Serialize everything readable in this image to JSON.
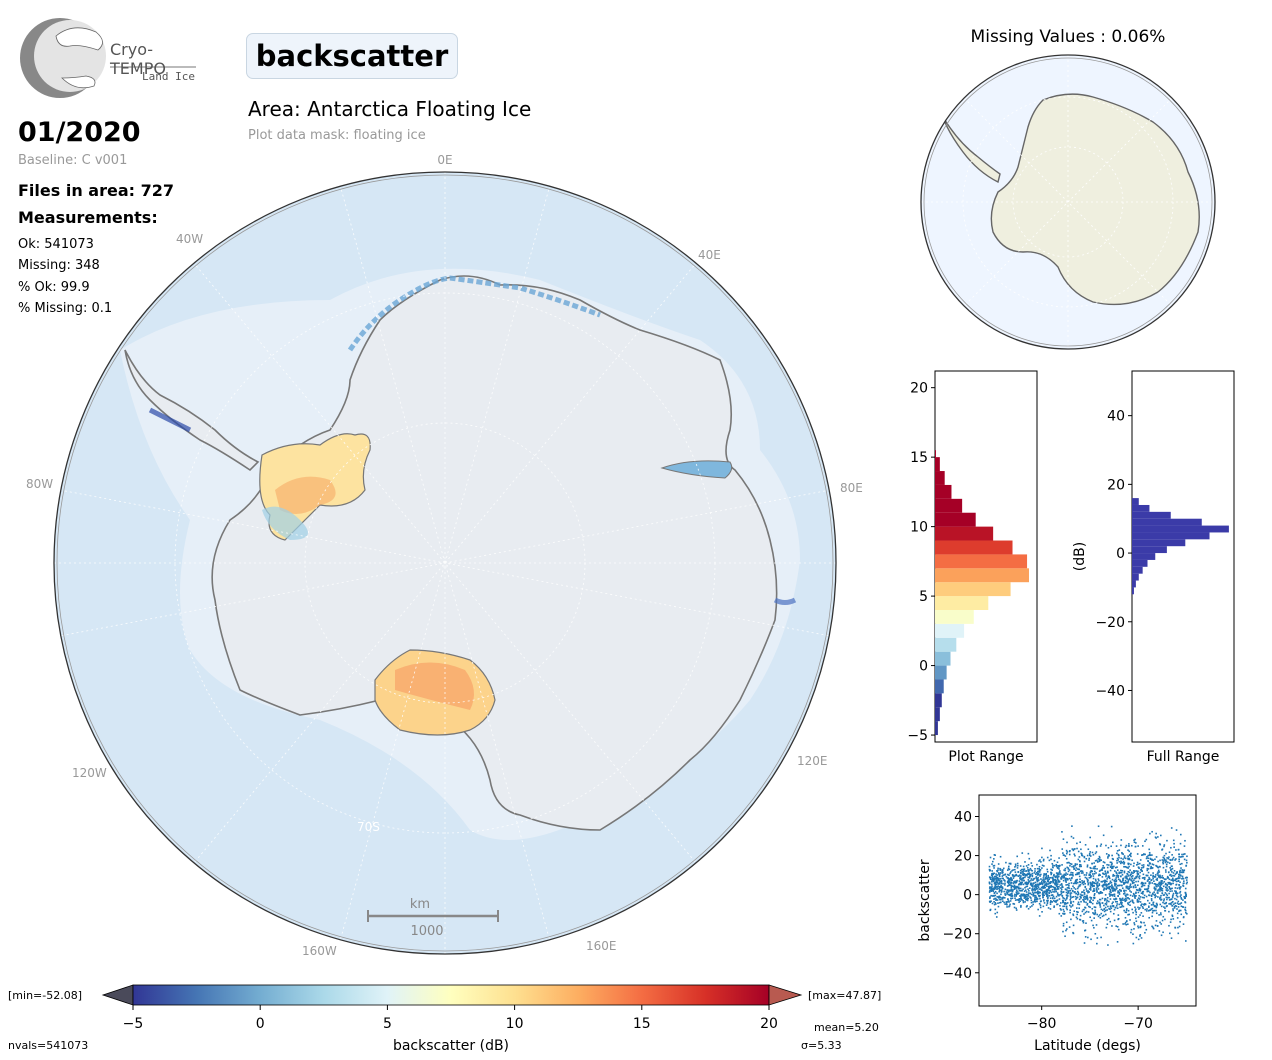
{
  "logo": {
    "brand": "Cryo-TEMPO",
    "product": "Land Ice"
  },
  "variable_name": "backscatter",
  "period": "01/2020",
  "baseline": "Baseline: C v001",
  "area_title": "Area: Antarctica Floating Ice",
  "mask_note": "Plot data mask: floating ice",
  "stats": {
    "files": "Files in area: 727",
    "measurements_heading": "Measurements:",
    "ok": "Ok: 541073",
    "missing": "Missing: 348",
    "pct_ok": "% Ok: 99.9",
    "pct_missing": "% Missing: 0.1"
  },
  "map": {
    "lon_labels": [
      "0E",
      "40E",
      "80E",
      "120E",
      "160E",
      "160W",
      "120W",
      "80W",
      "40W"
    ],
    "lat_label": "70S",
    "scalebar_unit": "km",
    "scalebar_value": "1000",
    "colors": {
      "ocean": "#d6e7f5",
      "ice_sheet": "#e8ecf1",
      "coast": "#777777"
    }
  },
  "missing_map": {
    "title": "Missing Values : 0.06%",
    "colors": {
      "land": "#efefdf",
      "ocean": "#eef5ff"
    }
  },
  "colorbar": {
    "label": "backscatter (dB)",
    "ticks": [
      "−5",
      "0",
      "5",
      "10",
      "15",
      "20"
    ],
    "min_label": "[min=-52.08]",
    "max_label": "[max=47.87]",
    "nvals": "nvals=541073",
    "mean": "mean=5.20",
    "sigma": "σ=5.33",
    "cmap": "RdYlBu_r"
  },
  "chart_data": [
    {
      "type": "histogram",
      "orientation": "horizontal",
      "xlabel": "Plot Range",
      "ylim": [
        -5.5,
        21.2
      ],
      "yticks": [
        "−5",
        "0",
        "5",
        "10",
        "15",
        "20"
      ],
      "bins": [
        -5,
        -4,
        -3,
        -2,
        -1,
        0,
        1,
        2,
        3,
        4,
        5,
        6,
        7,
        8,
        9,
        10,
        11,
        12,
        13,
        14,
        15,
        15.5
      ],
      "relative_counts": [
        0.03,
        0.05,
        0.07,
        0.09,
        0.12,
        0.16,
        0.22,
        0.3,
        0.4,
        0.55,
        0.78,
        0.97,
        0.95,
        0.8,
        0.6,
        0.42,
        0.28,
        0.17,
        0.1,
        0.05,
        0.01
      ]
    },
    {
      "type": "histogram",
      "orientation": "horizontal",
      "xlabel": "Full Range",
      "ylabel": "(dB)",
      "ylim": [
        -55,
        53
      ],
      "yticks": [
        "−40",
        "−20",
        "0",
        "20",
        "40"
      ],
      "color": "#3b3ba8",
      "bins": [
        -12,
        -10,
        -8,
        -6,
        -4,
        -2,
        0,
        2,
        4,
        6,
        8,
        10,
        12,
        14,
        16
      ],
      "relative_counts": [
        0.02,
        0.04,
        0.07,
        0.11,
        0.16,
        0.24,
        0.36,
        0.55,
        0.8,
        1.0,
        0.72,
        0.4,
        0.18,
        0.07
      ]
    },
    {
      "type": "scatter",
      "xlabel": "Latitude (degs)",
      "ylabel": "backscatter",
      "xlim": [
        -86.5,
        -64
      ],
      "ylim": [
        -57,
        51
      ],
      "xticks": [
        "−80",
        "−70"
      ],
      "yticks": [
        "−40",
        "−20",
        "0",
        "20",
        "40"
      ],
      "color": "#1f77b4",
      "x_range": [
        -85.5,
        -65
      ],
      "mean": 5.2,
      "min": -52.08,
      "max": 47.87
    }
  ]
}
